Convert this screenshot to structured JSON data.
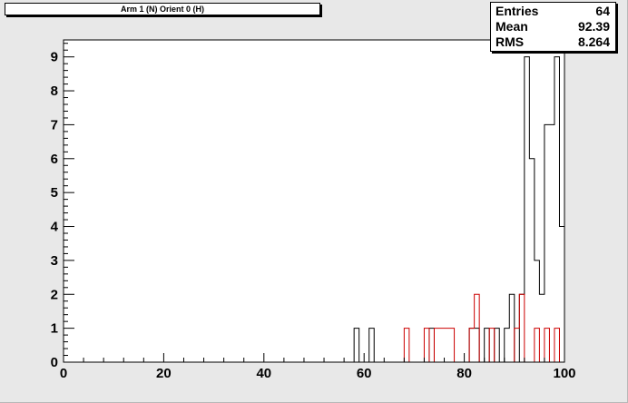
{
  "title": "Arm 1 (N) Orient 0 (H)",
  "stats": [
    {
      "label": "Entries",
      "value": "64"
    },
    {
      "label": "Mean",
      "value": "92.39"
    },
    {
      "label": "RMS",
      "value": "8.264"
    }
  ],
  "colors": {
    "background": "#e8e8e8",
    "frame": "#ffffff",
    "axis": "#000000",
    "series_black": "#000000",
    "series_red": "#cc0000"
  },
  "chart_data": {
    "type": "histogram",
    "xlim": [
      0,
      100
    ],
    "ylim": [
      0,
      9.5
    ],
    "bin_width": 1,
    "x_ticks": [
      0,
      20,
      40,
      60,
      80,
      100
    ],
    "x_tick_labels": [
      "0",
      "20",
      "40",
      "60",
      "80",
      "100"
    ],
    "y_ticks": [
      0,
      1,
      2,
      3,
      4,
      5,
      6,
      7,
      8,
      9
    ],
    "y_tick_labels": [
      "0",
      "1",
      "2",
      "3",
      "4",
      "5",
      "6",
      "7",
      "8",
      "9"
    ],
    "grid": false,
    "series": [
      {
        "color": "#000000",
        "bins": [
          {
            "x": 58,
            "y": 1
          },
          {
            "x": 61,
            "y": 1
          },
          {
            "x": 73,
            "y": 1
          },
          {
            "x": 81,
            "y": 1
          },
          {
            "x": 82,
            "y": 1
          },
          {
            "x": 84,
            "y": 1
          },
          {
            "x": 86,
            "y": 1
          },
          {
            "x": 88,
            "y": 1
          },
          {
            "x": 89,
            "y": 2
          },
          {
            "x": 91,
            "y": 2
          },
          {
            "x": 92,
            "y": 9
          },
          {
            "x": 93,
            "y": 6
          },
          {
            "x": 94,
            "y": 3
          },
          {
            "x": 95,
            "y": 2
          },
          {
            "x": 96,
            "y": 7
          },
          {
            "x": 97,
            "y": 7
          },
          {
            "x": 98,
            "y": 9
          },
          {
            "x": 99,
            "y": 4
          }
        ]
      },
      {
        "color": "#cc0000",
        "bins": [
          {
            "x": 68,
            "y": 1
          },
          {
            "x": 72,
            "y": 1
          },
          {
            "x": 74,
            "y": 1
          },
          {
            "x": 75,
            "y": 1
          },
          {
            "x": 76,
            "y": 1
          },
          {
            "x": 77,
            "y": 1
          },
          {
            "x": 81,
            "y": 1
          },
          {
            "x": 82,
            "y": 2
          },
          {
            "x": 85,
            "y": 1
          },
          {
            "x": 90,
            "y": 1
          },
          {
            "x": 91,
            "y": 2
          },
          {
            "x": 94,
            "y": 1
          },
          {
            "x": 96,
            "y": 1
          },
          {
            "x": 98,
            "y": 1
          }
        ]
      }
    ]
  }
}
